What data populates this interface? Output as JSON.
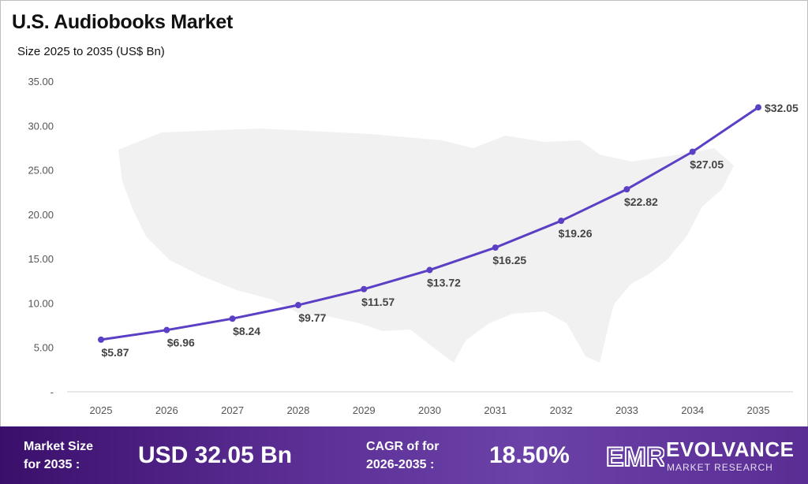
{
  "title": "U.S. Audiobooks Market",
  "subtitle": "Size 2025 to 2035 (US$ Bn)",
  "colors": {
    "line": "#5b3fc4",
    "footer_start": "#3a0f6b",
    "footer_end": "#6b42a8",
    "map_silhouette": "#f1f1f1"
  },
  "chart_data": {
    "type": "line",
    "categories": [
      "2025",
      "2026",
      "2027",
      "2028",
      "2029",
      "2030",
      "2031",
      "2032",
      "2033",
      "2034",
      "2035"
    ],
    "values": [
      5.87,
      6.96,
      8.24,
      9.77,
      11.57,
      13.72,
      16.25,
      19.26,
      22.82,
      27.05,
      32.05
    ],
    "data_labels": [
      "$5.87",
      "$6.96",
      "$8.24",
      "$9.77",
      "$11.57",
      "$13.72",
      "$16.25",
      "$19.26",
      "$22.82",
      "$27.05",
      "$32.05"
    ],
    "y_ticks": [
      "-",
      "5.00",
      "10.00",
      "15.00",
      "20.00",
      "25.00",
      "30.00",
      "35.00"
    ],
    "ylim": [
      0,
      35
    ],
    "grid": false
  },
  "footer": {
    "market_size_label_line1": "Market Size",
    "market_size_label_line2": "for 2035 :",
    "market_size_value": "USD 32.05 Bn",
    "cagr_label_line1": "CAGR of for",
    "cagr_label_line2": "2026-2035 :",
    "cagr_value": "18.50%",
    "brand_logo_text": "EMR",
    "brand_name": "EVOLVANCE",
    "brand_tagline": "MARKET RESEARCH"
  }
}
